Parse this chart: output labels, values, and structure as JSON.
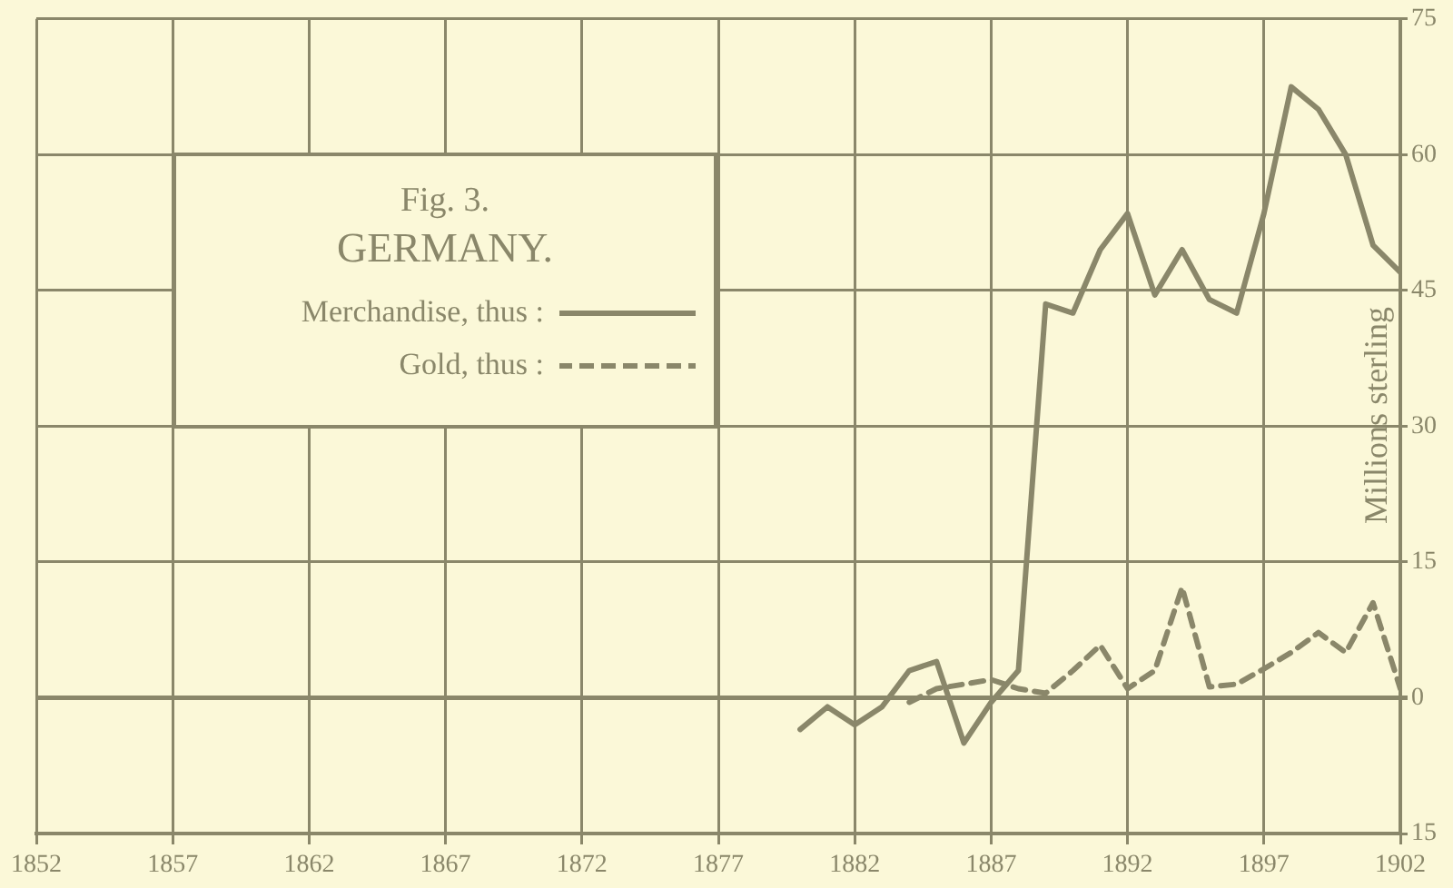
{
  "chart_data": {
    "type": "line",
    "title": "Fig. 3.",
    "subtitle": "GERMANY.",
    "ylabel": "Millions sterling",
    "x": [
      1880,
      1881,
      1882,
      1883,
      1884,
      1885,
      1886,
      1887,
      1888,
      1889,
      1890,
      1891,
      1892,
      1893,
      1894,
      1895,
      1896,
      1897,
      1898,
      1899,
      1900,
      1901,
      1902
    ],
    "series": [
      {
        "name": "Merchandise, thus :",
        "color": "#8a876a",
        "line_style": "solid",
        "values": [
          -3.5,
          -1,
          -3,
          -1,
          3,
          4,
          -5,
          -0.5,
          3,
          43.5,
          42.5,
          49.5,
          53.5,
          44.5,
          49.5,
          44,
          42.5,
          53.5,
          67.5,
          65,
          60,
          50,
          47
        ]
      },
      {
        "name": "Gold, thus :",
        "color": "#8a876a",
        "line_style": "dashed",
        "values": [
          null,
          null,
          null,
          null,
          -0.5,
          1,
          1.5,
          2,
          1,
          0.5,
          3,
          5.8,
          1,
          3,
          12.2,
          1.2,
          1.5,
          3.2,
          5,
          7.2,
          5,
          10.5,
          1
        ]
      }
    ],
    "xlim": [
      1852,
      1902
    ],
    "xticks": [
      1852,
      1857,
      1862,
      1867,
      1872,
      1877,
      1882,
      1887,
      1892,
      1897,
      1902
    ],
    "ylim": [
      -15,
      75
    ],
    "yticks": [
      75,
      60,
      45,
      30,
      15,
      0,
      {
        "value": -15,
        "label": "15"
      }
    ],
    "grid": true,
    "legend": "top left",
    "marker": "none"
  }
}
